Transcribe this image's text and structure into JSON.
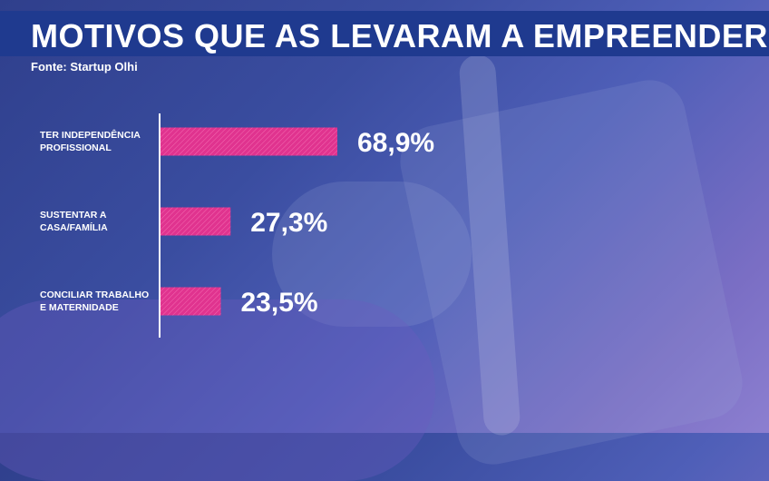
{
  "title": "MOTIVOS QUE AS LEVARAM A EMPREENDER",
  "source": "Fonte: Startup Olhi",
  "colors": {
    "bar": "#e0338f",
    "title_bar": "#1f3a8f",
    "text": "#ffffff"
  },
  "chart_data": {
    "type": "bar",
    "orientation": "horizontal",
    "categories": [
      [
        "TER INDEPENDÊNCIA",
        "PROFISSIONAL"
      ],
      [
        "SUSTENTAR A",
        "CASA/FAMÍLIA"
      ],
      [
        "CONCILIAR TRABALHO",
        "E MATERNIDADE"
      ]
    ],
    "values": [
      68.9,
      27.3,
      23.5
    ],
    "value_labels": [
      "68,9%",
      "27,3%",
      "23,5%"
    ],
    "xlim": [
      0,
      100
    ]
  }
}
